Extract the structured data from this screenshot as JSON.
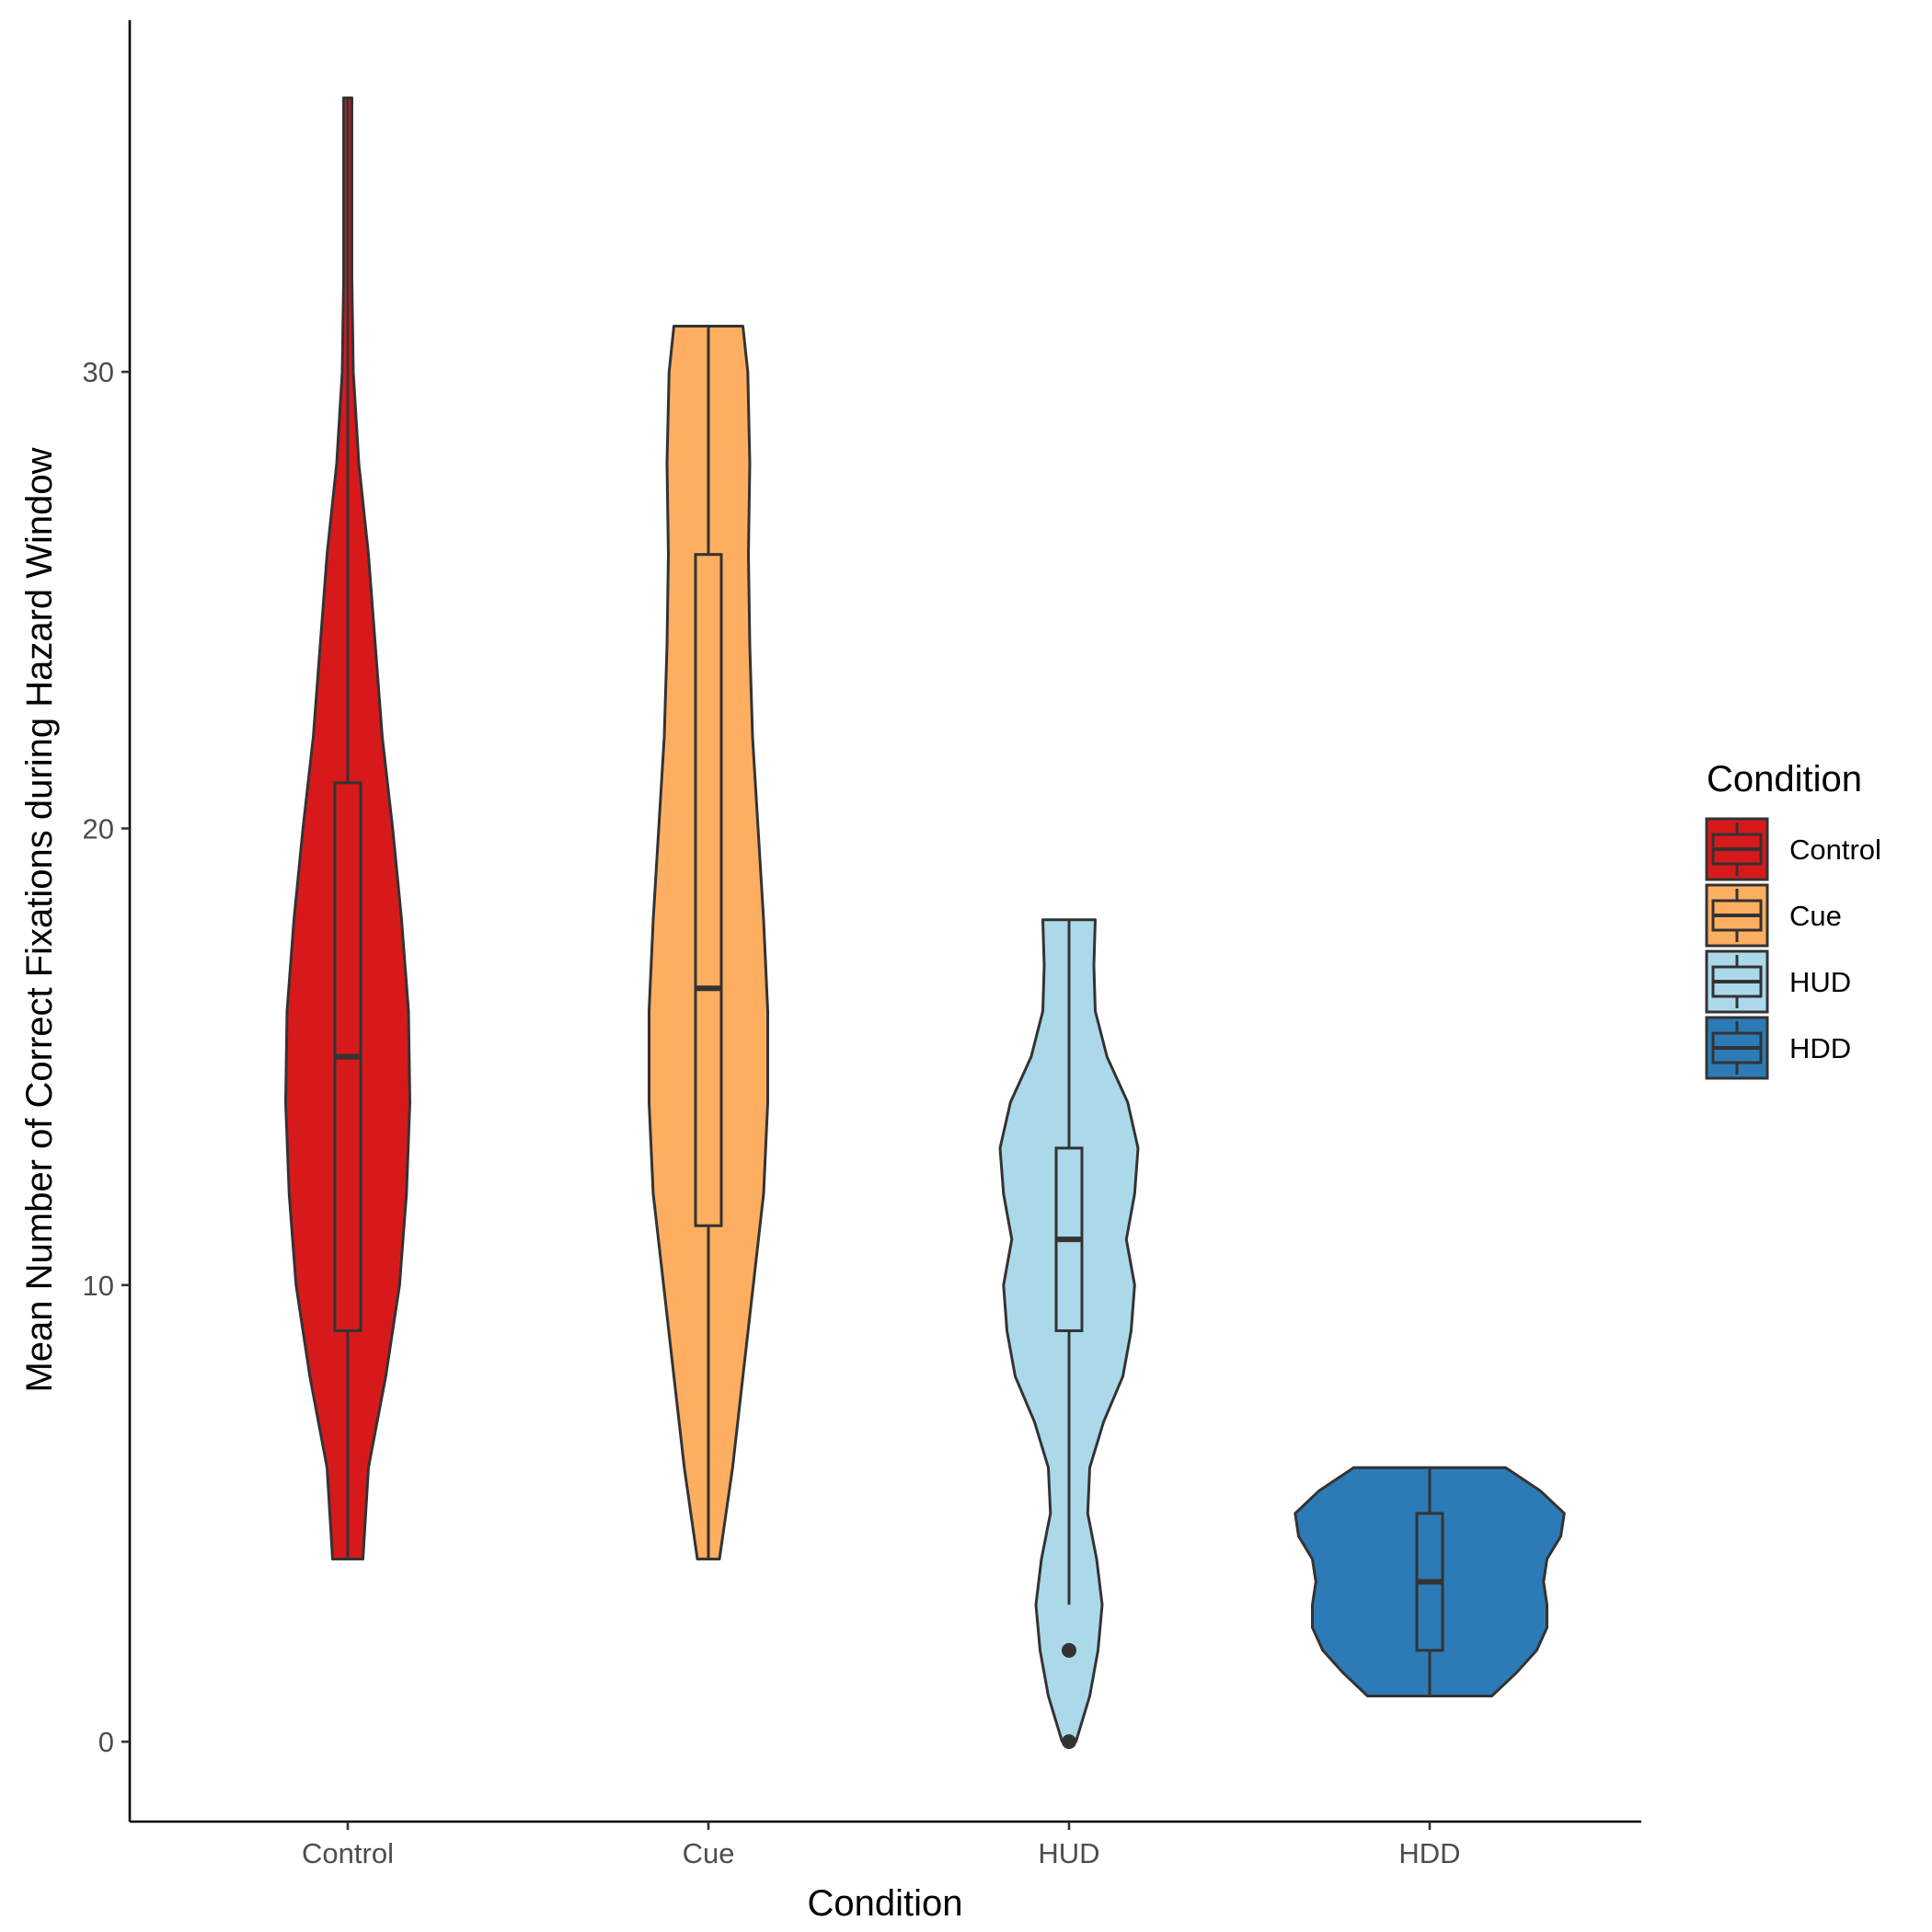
{
  "chart_data": {
    "type": "violin",
    "xlabel": "Condition",
    "ylabel": "Mean Number of Correct Fixations during Hazard Window",
    "ylim": [
      -1.75,
      37.7
    ],
    "yticks": [
      0,
      10,
      20,
      30
    ],
    "categories": [
      "Control",
      "Cue",
      "HUD",
      "HDD"
    ],
    "legend": {
      "title": "Condition",
      "position": "right",
      "items": [
        "Control",
        "Cue",
        "HUD",
        "HDD"
      ]
    },
    "grid": false,
    "series": [
      {
        "name": "Control",
        "color": "#d7191c",
        "min": 4,
        "q1": 9,
        "median": 15,
        "q3": 21,
        "max": 36,
        "outliers": [],
        "density": [
          [
            4,
            0.22
          ],
          [
            6,
            0.3
          ],
          [
            8,
            0.55
          ],
          [
            10,
            0.75
          ],
          [
            12,
            0.85
          ],
          [
            14,
            0.9
          ],
          [
            16,
            0.88
          ],
          [
            18,
            0.78
          ],
          [
            20,
            0.65
          ],
          [
            22,
            0.5
          ],
          [
            24,
            0.4
          ],
          [
            26,
            0.3
          ],
          [
            28,
            0.16
          ],
          [
            30,
            0.08
          ],
          [
            32,
            0.06
          ],
          [
            34,
            0.06
          ],
          [
            36,
            0.06
          ]
        ]
      },
      {
        "name": "Cue",
        "color": "#fdae61",
        "min": 4,
        "q1": 11.3,
        "median": 16.5,
        "q3": 26,
        "max": 31,
        "outliers": [],
        "density": [
          [
            4,
            0.16
          ],
          [
            6,
            0.35
          ],
          [
            8,
            0.5
          ],
          [
            10,
            0.65
          ],
          [
            12,
            0.8
          ],
          [
            14,
            0.86
          ],
          [
            16,
            0.86
          ],
          [
            18,
            0.8
          ],
          [
            20,
            0.72
          ],
          [
            22,
            0.64
          ],
          [
            24,
            0.6
          ],
          [
            26,
            0.58
          ],
          [
            28,
            0.6
          ],
          [
            30,
            0.57
          ],
          [
            31,
            0.5
          ]
        ]
      },
      {
        "name": "HUD",
        "color": "#abd9e9",
        "min": 3,
        "q1": 9,
        "median": 11,
        "q3": 13,
        "max": 18,
        "outliers": [
          2,
          0
        ],
        "density": [
          [
            0,
            0.1
          ],
          [
            0.5,
            0.2
          ],
          [
            1,
            0.3
          ],
          [
            2,
            0.42
          ],
          [
            3,
            0.48
          ],
          [
            4,
            0.4
          ],
          [
            5,
            0.27
          ],
          [
            6,
            0.3
          ],
          [
            7,
            0.5
          ],
          [
            8,
            0.78
          ],
          [
            9,
            0.9
          ],
          [
            10,
            0.95
          ],
          [
            11,
            0.83
          ],
          [
            12,
            0.95
          ],
          [
            13,
            1.0
          ],
          [
            14,
            0.85
          ],
          [
            15,
            0.55
          ],
          [
            16,
            0.38
          ],
          [
            17,
            0.36
          ],
          [
            18,
            0.38
          ]
        ]
      },
      {
        "name": "HDD",
        "color": "#2c7bb6",
        "min": 1,
        "q1": 2,
        "median": 3.5,
        "q3": 5,
        "max": 6,
        "outliers": [],
        "density": [
          [
            1,
            0.9
          ],
          [
            1.5,
            1.25
          ],
          [
            2,
            1.55
          ],
          [
            2.5,
            1.7
          ],
          [
            3,
            1.7
          ],
          [
            3.5,
            1.65
          ],
          [
            4,
            1.7
          ],
          [
            4.5,
            1.9
          ],
          [
            5,
            1.95
          ],
          [
            5.5,
            1.6
          ],
          [
            6,
            1.1
          ]
        ]
      }
    ]
  }
}
